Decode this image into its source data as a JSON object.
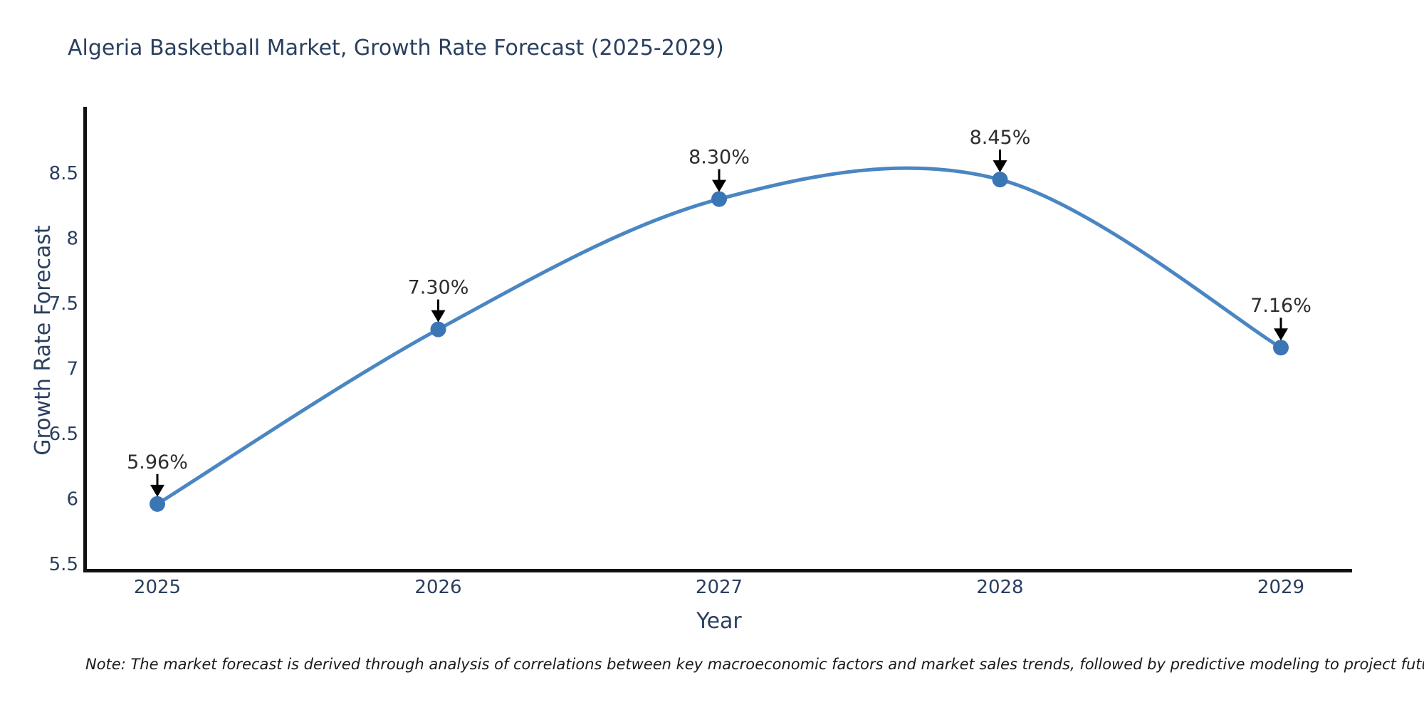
{
  "title": "Algeria Basketball Market, Growth Rate Forecast (2025-2029)",
  "note": "Note: The market forecast is derived through analysis of correlations between key macroeconomic factors and market sales trends, followed by predictive modeling to project future sales",
  "chart_data": {
    "type": "line",
    "line_shape": "spline",
    "title": "Algeria Basketball Market, Growth Rate Forecast (2025-2029)",
    "xlabel": "Year",
    "ylabel": "Growth Rate Forecast",
    "x": [
      2025,
      2026,
      2027,
      2028,
      2029
    ],
    "values": [
      5.96,
      7.3,
      8.3,
      8.45,
      7.16
    ],
    "point_labels": [
      "5.96%",
      "7.30%",
      "8.30%",
      "8.45%",
      "7.16%"
    ],
    "xticks": [
      "2025",
      "2026",
      "2027",
      "2028",
      "2029"
    ],
    "yticks": [
      5.5,
      6,
      6.5,
      7,
      7.5,
      8,
      8.5
    ],
    "ylim": [
      5.5,
      8.5
    ],
    "grid": false,
    "legend": "none",
    "markers": true,
    "annotations_arrow": true,
    "colors": {
      "line": "#4a86c2",
      "marker": "#3a76b3",
      "arrow": "#000000",
      "spine": "#111111",
      "title_text": "#2a3f5f",
      "axis_text": "#2a3f5f",
      "annotation_text": "#2d2d2d",
      "note_text": "#1a1a1a",
      "background": "#ffffff"
    }
  }
}
